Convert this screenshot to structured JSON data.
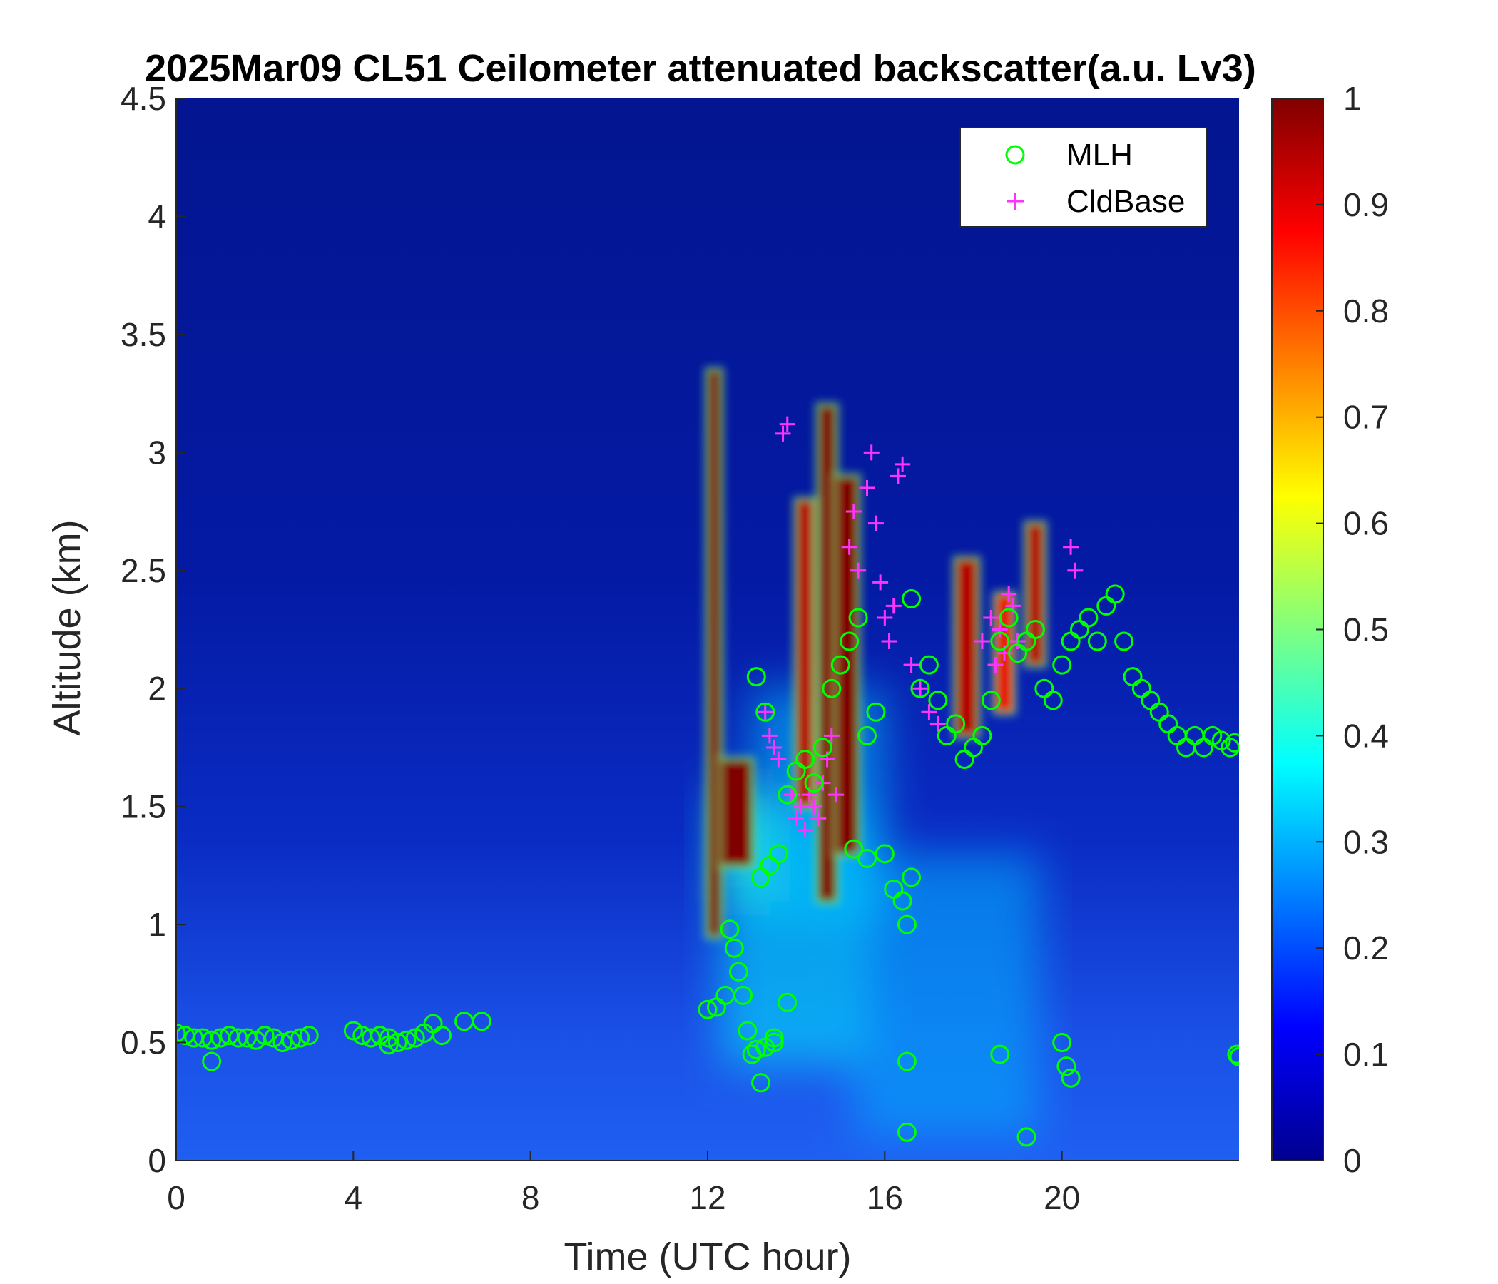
{
  "chart_data": {
    "type": "heatmap",
    "title": "2025Mar09 CL51 Ceilometer attenuated backscatter(a.u. Lv3)",
    "xlabel": "Time (UTC hour)",
    "ylabel": "Altitude (km)",
    "xlim": [
      0,
      24
    ],
    "ylim": [
      0,
      4.5
    ],
    "x_ticks": [
      0,
      4,
      8,
      12,
      16,
      20
    ],
    "x_tick_labels": [
      "0",
      "4",
      "8",
      "12",
      "16",
      "20"
    ],
    "y_ticks": [
      0,
      0.5,
      1,
      1.5,
      2,
      2.5,
      3,
      3.5,
      4,
      4.5
    ],
    "y_tick_labels": [
      "0",
      "0.5",
      "1",
      "1.5",
      "2",
      "2.5",
      "3",
      "3.5",
      "4",
      "4.5"
    ],
    "colorbar": {
      "colormap": "jet",
      "range": [
        0,
        1
      ],
      "ticks": [
        0,
        0.1,
        0.2,
        0.3,
        0.4,
        0.5,
        0.6,
        0.7,
        0.8,
        0.9,
        1
      ],
      "tick_labels": [
        "0",
        "0.1",
        "0.2",
        "0.3",
        "0.4",
        "0.5",
        "0.6",
        "0.7",
        "0.8",
        "0.9",
        "1"
      ]
    },
    "legend": {
      "placement": "top-right",
      "entries": [
        {
          "name": "MLH",
          "marker": "circle",
          "color": "#00ff00"
        },
        {
          "name": "CldBase",
          "marker": "plus",
          "color": "#ff33ff"
        }
      ]
    },
    "backscatter_features": [
      {
        "t0": 12.0,
        "t1": 12.3,
        "z0": 0.95,
        "z1": 3.35,
        "level": 1.0
      },
      {
        "t0": 12.3,
        "t1": 13.0,
        "z0": 1.25,
        "z1": 1.7,
        "level": 1.0
      },
      {
        "t0": 14.0,
        "t1": 14.4,
        "z0": 1.5,
        "z1": 2.8,
        "level": 0.95
      },
      {
        "t0": 14.5,
        "t1": 14.9,
        "z0": 1.1,
        "z1": 3.2,
        "level": 1.0
      },
      {
        "t0": 14.9,
        "t1": 15.4,
        "z0": 1.3,
        "z1": 2.9,
        "level": 1.0
      },
      {
        "t0": 17.6,
        "t1": 18.1,
        "z0": 1.8,
        "z1": 2.55,
        "level": 0.95
      },
      {
        "t0": 18.5,
        "t1": 18.9,
        "z0": 1.9,
        "z1": 2.4,
        "level": 0.9
      },
      {
        "t0": 19.2,
        "t1": 19.6,
        "z0": 2.1,
        "z1": 2.7,
        "level": 0.95
      }
    ],
    "series": [
      {
        "name": "MLH",
        "x": [
          0.0,
          0.2,
          0.4,
          0.6,
          0.8,
          1.0,
          1.2,
          1.4,
          1.6,
          1.8,
          2.0,
          2.2,
          2.4,
          2.6,
          2.8,
          3.0,
          4.0,
          4.2,
          4.4,
          4.6,
          4.8,
          5.0,
          5.2,
          5.4,
          5.6,
          5.8,
          6.0,
          6.5,
          6.9,
          0.8,
          4.8,
          12.0,
          12.2,
          12.4,
          12.5,
          12.6,
          12.7,
          12.8,
          12.9,
          13.0,
          13.1,
          13.3,
          13.5,
          13.2,
          13.4,
          13.6,
          13.8,
          14.0,
          14.2,
          14.4,
          14.6,
          14.8,
          15.0,
          15.2,
          15.4,
          15.6,
          15.8,
          15.3,
          15.6,
          16.0,
          16.2,
          16.4,
          16.5,
          16.6,
          16.8,
          17.0,
          17.2,
          17.4,
          17.6,
          17.8,
          18.0,
          18.2,
          18.4,
          18.6,
          18.8,
          19.0,
          19.2,
          19.4,
          19.6,
          19.8,
          20.0,
          20.2,
          20.4,
          20.6,
          20.8,
          21.0,
          21.2,
          21.4,
          21.6,
          21.8,
          22.0,
          22.2,
          22.4,
          22.6,
          22.8,
          23.0,
          23.2,
          23.4,
          23.6,
          23.8,
          23.9,
          16.5,
          16.5,
          18.6,
          19.2,
          20.0,
          20.1,
          20.2,
          13.2,
          13.5,
          13.1,
          13.3,
          13.8,
          16.6,
          23.95,
          24.0
        ],
        "y": [
          0.54,
          0.53,
          0.52,
          0.52,
          0.51,
          0.52,
          0.53,
          0.52,
          0.52,
          0.51,
          0.53,
          0.52,
          0.5,
          0.51,
          0.52,
          0.53,
          0.55,
          0.53,
          0.52,
          0.53,
          0.52,
          0.5,
          0.51,
          0.52,
          0.54,
          0.58,
          0.53,
          0.59,
          0.59,
          0.42,
          0.49,
          0.64,
          0.65,
          0.7,
          0.98,
          0.9,
          0.8,
          0.7,
          0.55,
          0.45,
          0.47,
          0.48,
          0.52,
          1.2,
          1.25,
          1.3,
          1.55,
          1.65,
          1.7,
          1.6,
          1.75,
          2.0,
          2.1,
          2.2,
          2.3,
          1.8,
          1.9,
          1.32,
          1.28,
          1.3,
          1.15,
          1.1,
          1.0,
          1.2,
          2.0,
          2.1,
          1.95,
          1.8,
          1.85,
          1.7,
          1.75,
          1.8,
          1.95,
          2.2,
          2.3,
          2.15,
          2.2,
          2.25,
          2.0,
          1.95,
          2.1,
          2.2,
          2.25,
          2.3,
          2.2,
          2.35,
          2.4,
          2.2,
          2.05,
          2.0,
          1.95,
          1.9,
          1.85,
          1.8,
          1.75,
          1.8,
          1.75,
          1.8,
          1.78,
          1.75,
          1.77,
          0.42,
          0.12,
          0.45,
          0.1,
          0.5,
          0.4,
          0.35,
          0.33,
          0.5,
          2.05,
          1.9,
          0.67,
          2.38,
          0.45,
          0.44
        ]
      },
      {
        "name": "CldBase",
        "x": [
          13.3,
          13.4,
          13.5,
          13.6,
          13.7,
          13.8,
          13.9,
          14.0,
          14.1,
          14.2,
          14.3,
          14.4,
          14.5,
          14.6,
          14.7,
          14.8,
          14.9,
          15.2,
          15.3,
          15.4,
          15.6,
          15.7,
          15.8,
          15.9,
          16.0,
          16.1,
          16.2,
          16.3,
          16.4,
          16.6,
          16.8,
          17.0,
          17.2,
          18.2,
          18.4,
          18.5,
          18.6,
          18.7,
          18.8,
          18.9,
          19.0,
          20.2,
          20.3
        ],
        "y": [
          1.9,
          1.8,
          1.75,
          1.7,
          3.08,
          3.12,
          1.55,
          1.45,
          1.5,
          1.4,
          1.55,
          1.5,
          1.45,
          1.6,
          1.7,
          1.8,
          1.55,
          2.6,
          2.75,
          2.5,
          2.85,
          3.0,
          2.7,
          2.45,
          2.3,
          2.2,
          2.35,
          2.9,
          2.95,
          2.1,
          2.0,
          1.9,
          1.85,
          2.2,
          2.3,
          2.1,
          2.25,
          2.15,
          2.4,
          2.35,
          2.2,
          2.6,
          2.5
        ]
      }
    ]
  }
}
